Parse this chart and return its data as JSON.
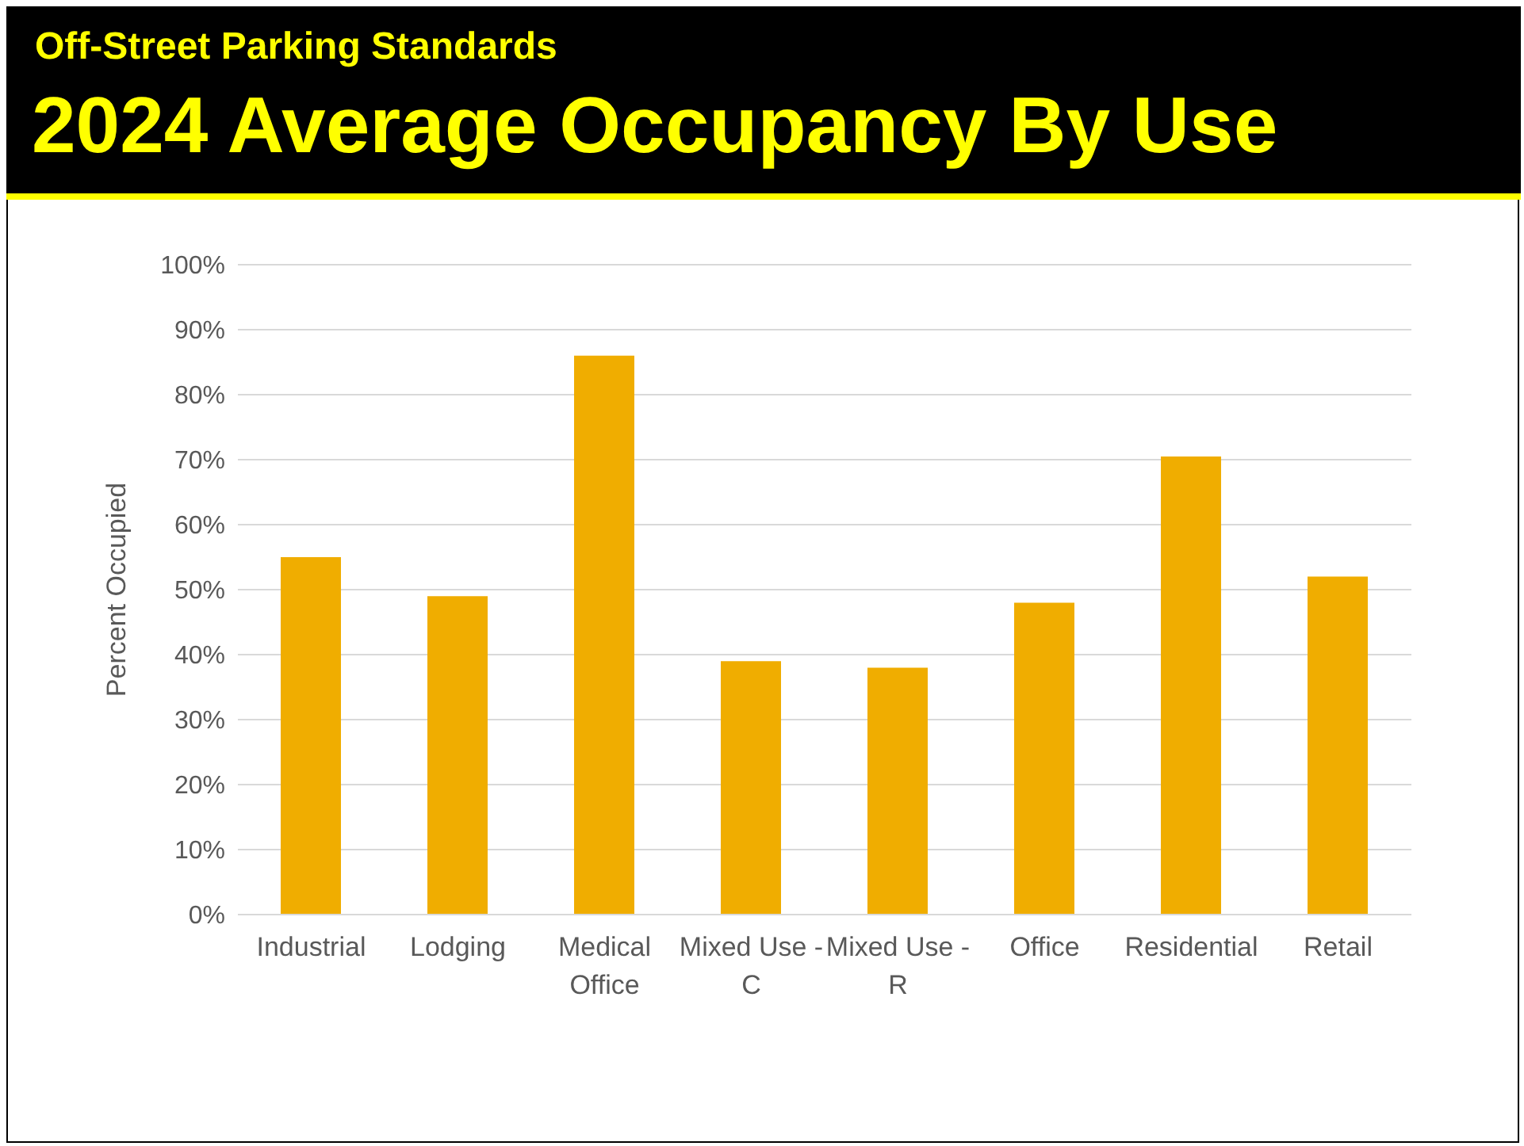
{
  "chart_data": {
    "type": "bar",
    "subtitle": "Off-Street Parking Standards",
    "title": "2024 Average Occupancy By Use",
    "ylabel": "Percent Occupied",
    "categories": [
      "Industrial",
      "Lodging",
      "Medical Office",
      "Mixed Use - C",
      "Mixed Use - R",
      "Office",
      "Residential",
      "Retail"
    ],
    "values": [
      55,
      49,
      86,
      39,
      38,
      48,
      70.5,
      52
    ],
    "color": "#f0ad00",
    "ylim": [
      0,
      100
    ],
    "yticks": [
      {
        "value": 0,
        "label": "0%"
      },
      {
        "value": 10,
        "label": "10%"
      },
      {
        "value": 20,
        "label": "20%"
      },
      {
        "value": 30,
        "label": "30%"
      },
      {
        "value": 40,
        "label": "40%"
      },
      {
        "value": 50,
        "label": "50%"
      },
      {
        "value": 60,
        "label": "60%"
      },
      {
        "value": 70,
        "label": "70%"
      },
      {
        "value": 80,
        "label": "80%"
      },
      {
        "value": 90,
        "label": "90%"
      },
      {
        "value": 100,
        "label": "100%"
      }
    ],
    "grid": "y"
  }
}
